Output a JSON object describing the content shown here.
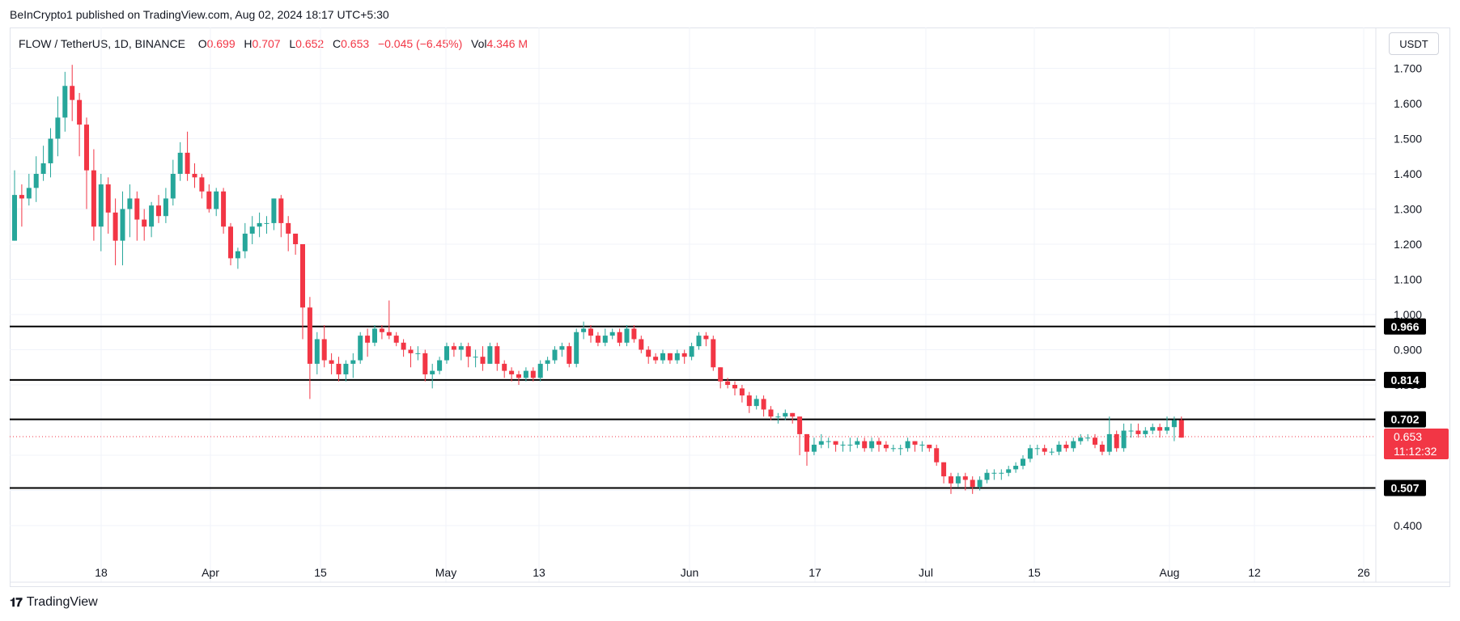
{
  "header": {
    "published": "BeInCrypto1 published on TradingView.com, Aug 02, 2024 18:17 UTC+5:30"
  },
  "legend": {
    "symbol": "FLOW / TetherUS, 1D, BINANCE",
    "o_label": "O",
    "o_value": "0.699",
    "h_label": "H",
    "h_value": "0.707",
    "l_label": "L",
    "l_value": "0.652",
    "c_label": "C",
    "c_value": "0.653",
    "change": "−0.045 (−6.45%)",
    "vol_label": "Vol",
    "vol_value": "4.346 M"
  },
  "currency_button": "USDT",
  "footer": {
    "brand": "TradingView"
  },
  "colors": {
    "up": "#26a69a",
    "down": "#f23645",
    "grid": "#f0f3fa",
    "level": "#000000"
  },
  "chart_data": {
    "type": "candlestick",
    "y_ticks": [
      "0.400",
      "0.500",
      "0.600",
      "0.700",
      "0.800",
      "0.900",
      "1.000",
      "1.100",
      "1.200",
      "1.300",
      "1.400",
      "1.500",
      "1.600",
      "1.700"
    ],
    "x_ticks": [
      "18",
      "Apr",
      "15",
      "May",
      "13",
      "Jun",
      "17",
      "Jul",
      "15",
      "Aug",
      "12",
      "26"
    ],
    "ylim": [
      0.35,
      1.76
    ],
    "levels": [
      {
        "value": 0.966,
        "label": "0.966"
      },
      {
        "value": 0.814,
        "label": "0.814"
      },
      {
        "value": 0.702,
        "label": "0.702"
      },
      {
        "value": 0.507,
        "label": "0.507"
      }
    ],
    "last_price": {
      "value": 0.653,
      "label": "0.653",
      "countdown": "11:12:32"
    },
    "candles": [
      [
        1.21,
        1.34,
        1.41,
        1.21
      ],
      [
        1.34,
        1.33,
        1.37,
        1.25
      ],
      [
        1.33,
        1.36,
        1.4,
        1.31
      ],
      [
        1.36,
        1.4,
        1.45,
        1.32
      ],
      [
        1.4,
        1.43,
        1.48,
        1.38
      ],
      [
        1.43,
        1.5,
        1.53,
        1.39
      ],
      [
        1.5,
        1.56,
        1.62,
        1.45
      ],
      [
        1.56,
        1.65,
        1.69,
        1.52
      ],
      [
        1.65,
        1.61,
        1.71,
        1.55
      ],
      [
        1.61,
        1.54,
        1.63,
        1.45
      ],
      [
        1.54,
        1.41,
        1.56,
        1.3
      ],
      [
        1.41,
        1.25,
        1.47,
        1.21
      ],
      [
        1.25,
        1.37,
        1.4,
        1.18
      ],
      [
        1.37,
        1.29,
        1.39,
        1.23
      ],
      [
        1.29,
        1.21,
        1.33,
        1.14
      ],
      [
        1.21,
        1.3,
        1.35,
        1.14
      ],
      [
        1.3,
        1.33,
        1.37,
        1.22
      ],
      [
        1.33,
        1.27,
        1.35,
        1.21
      ],
      [
        1.27,
        1.25,
        1.3,
        1.21
      ],
      [
        1.25,
        1.31,
        1.32,
        1.22
      ],
      [
        1.31,
        1.28,
        1.34,
        1.26
      ],
      [
        1.28,
        1.33,
        1.36,
        1.26
      ],
      [
        1.33,
        1.4,
        1.44,
        1.31
      ],
      [
        1.4,
        1.46,
        1.49,
        1.38
      ],
      [
        1.46,
        1.4,
        1.52,
        1.38
      ],
      [
        1.4,
        1.39,
        1.43,
        1.36
      ],
      [
        1.39,
        1.35,
        1.4,
        1.33
      ],
      [
        1.35,
        1.3,
        1.37,
        1.29
      ],
      [
        1.3,
        1.35,
        1.36,
        1.28
      ],
      [
        1.35,
        1.25,
        1.36,
        1.23
      ],
      [
        1.25,
        1.16,
        1.26,
        1.14
      ],
      [
        1.16,
        1.18,
        1.19,
        1.13
      ],
      [
        1.18,
        1.23,
        1.26,
        1.16
      ],
      [
        1.23,
        1.25,
        1.28,
        1.2
      ],
      [
        1.25,
        1.26,
        1.29,
        1.22
      ],
      [
        1.26,
        1.26,
        1.28,
        1.23
      ],
      [
        1.26,
        1.33,
        1.33,
        1.24
      ],
      [
        1.33,
        1.26,
        1.34,
        1.22
      ],
      [
        1.26,
        1.23,
        1.28,
        1.18
      ],
      [
        1.23,
        1.2,
        1.23,
        1.17
      ],
      [
        1.2,
        1.02,
        1.2,
        0.93
      ],
      [
        1.02,
        0.86,
        1.05,
        0.76
      ],
      [
        0.86,
        0.93,
        0.95,
        0.83
      ],
      [
        0.93,
        0.87,
        0.97,
        0.85
      ],
      [
        0.87,
        0.86,
        0.89,
        0.83
      ],
      [
        0.86,
        0.83,
        0.88,
        0.81
      ],
      [
        0.83,
        0.86,
        0.87,
        0.81
      ],
      [
        0.86,
        0.87,
        0.89,
        0.82
      ],
      [
        0.87,
        0.94,
        0.95,
        0.86
      ],
      [
        0.94,
        0.92,
        0.96,
        0.88
      ],
      [
        0.92,
        0.96,
        0.97,
        0.91
      ],
      [
        0.96,
        0.95,
        0.97,
        0.93
      ],
      [
        0.95,
        0.94,
        1.04,
        0.93
      ],
      [
        0.94,
        0.92,
        0.95,
        0.91
      ],
      [
        0.92,
        0.9,
        0.93,
        0.88
      ],
      [
        0.9,
        0.89,
        0.91,
        0.85
      ],
      [
        0.89,
        0.89,
        0.91,
        0.87
      ],
      [
        0.89,
        0.83,
        0.9,
        0.81
      ],
      [
        0.83,
        0.84,
        0.86,
        0.79
      ],
      [
        0.84,
        0.87,
        0.88,
        0.83
      ],
      [
        0.87,
        0.91,
        0.92,
        0.86
      ],
      [
        0.91,
        0.9,
        0.92,
        0.88
      ],
      [
        0.9,
        0.91,
        0.92,
        0.87
      ],
      [
        0.91,
        0.88,
        0.92,
        0.85
      ],
      [
        0.88,
        0.88,
        0.9,
        0.85
      ],
      [
        0.88,
        0.86,
        0.91,
        0.84
      ],
      [
        0.86,
        0.91,
        0.92,
        0.86
      ],
      [
        0.91,
        0.86,
        0.92,
        0.84
      ],
      [
        0.86,
        0.84,
        0.87,
        0.82
      ],
      [
        0.84,
        0.83,
        0.85,
        0.81
      ],
      [
        0.83,
        0.82,
        0.84,
        0.8
      ],
      [
        0.82,
        0.84,
        0.85,
        0.81
      ],
      [
        0.84,
        0.82,
        0.85,
        0.81
      ],
      [
        0.82,
        0.86,
        0.87,
        0.81
      ],
      [
        0.86,
        0.87,
        0.88,
        0.84
      ],
      [
        0.87,
        0.9,
        0.91,
        0.86
      ],
      [
        0.9,
        0.91,
        0.92,
        0.88
      ],
      [
        0.91,
        0.86,
        0.92,
        0.85
      ],
      [
        0.86,
        0.95,
        0.96,
        0.85
      ],
      [
        0.95,
        0.96,
        0.98,
        0.93
      ],
      [
        0.96,
        0.94,
        0.97,
        0.92
      ],
      [
        0.94,
        0.92,
        0.95,
        0.91
      ],
      [
        0.92,
        0.94,
        0.96,
        0.91
      ],
      [
        0.94,
        0.95,
        0.96,
        0.93
      ],
      [
        0.95,
        0.92,
        0.96,
        0.91
      ],
      [
        0.92,
        0.96,
        0.97,
        0.91
      ],
      [
        0.96,
        0.93,
        0.97,
        0.92
      ],
      [
        0.93,
        0.9,
        0.94,
        0.89
      ],
      [
        0.9,
        0.88,
        0.91,
        0.86
      ],
      [
        0.88,
        0.87,
        0.89,
        0.86
      ],
      [
        0.87,
        0.89,
        0.9,
        0.86
      ],
      [
        0.89,
        0.87,
        0.89,
        0.86
      ],
      [
        0.87,
        0.89,
        0.9,
        0.86
      ],
      [
        0.89,
        0.88,
        0.9,
        0.86
      ],
      [
        0.88,
        0.91,
        0.92,
        0.87
      ],
      [
        0.91,
        0.94,
        0.95,
        0.9
      ],
      [
        0.94,
        0.93,
        0.95,
        0.91
      ],
      [
        0.93,
        0.85,
        0.94,
        0.84
      ],
      [
        0.85,
        0.81,
        0.85,
        0.79
      ],
      [
        0.81,
        0.8,
        0.82,
        0.79
      ],
      [
        0.8,
        0.79,
        0.81,
        0.77
      ],
      [
        0.79,
        0.77,
        0.8,
        0.75
      ],
      [
        0.77,
        0.74,
        0.78,
        0.72
      ],
      [
        0.74,
        0.76,
        0.77,
        0.73
      ],
      [
        0.76,
        0.73,
        0.77,
        0.71
      ],
      [
        0.73,
        0.71,
        0.74,
        0.7
      ],
      [
        0.71,
        0.71,
        0.72,
        0.69
      ],
      [
        0.71,
        0.72,
        0.73,
        0.7
      ],
      [
        0.72,
        0.71,
        0.72,
        0.69
      ],
      [
        0.71,
        0.66,
        0.71,
        0.6
      ],
      [
        0.66,
        0.61,
        0.66,
        0.57
      ],
      [
        0.61,
        0.63,
        0.65,
        0.6
      ],
      [
        0.63,
        0.64,
        0.66,
        0.62
      ],
      [
        0.64,
        0.64,
        0.65,
        0.62
      ],
      [
        0.64,
        0.63,
        0.64,
        0.61
      ],
      [
        0.63,
        0.63,
        0.64,
        0.61
      ],
      [
        0.63,
        0.63,
        0.65,
        0.61
      ],
      [
        0.63,
        0.64,
        0.65,
        0.62
      ],
      [
        0.64,
        0.62,
        0.65,
        0.61
      ],
      [
        0.62,
        0.64,
        0.65,
        0.61
      ],
      [
        0.64,
        0.63,
        0.65,
        0.61
      ],
      [
        0.63,
        0.62,
        0.64,
        0.61
      ],
      [
        0.62,
        0.62,
        0.63,
        0.61
      ],
      [
        0.62,
        0.62,
        0.63,
        0.6
      ],
      [
        0.62,
        0.64,
        0.65,
        0.61
      ],
      [
        0.64,
        0.63,
        0.64,
        0.61
      ],
      [
        0.63,
        0.63,
        0.64,
        0.61
      ],
      [
        0.63,
        0.62,
        0.63,
        0.61
      ],
      [
        0.62,
        0.58,
        0.63,
        0.57
      ],
      [
        0.58,
        0.54,
        0.58,
        0.52
      ],
      [
        0.54,
        0.52,
        0.55,
        0.49
      ],
      [
        0.52,
        0.54,
        0.55,
        0.51
      ],
      [
        0.54,
        0.53,
        0.55,
        0.5
      ],
      [
        0.53,
        0.51,
        0.54,
        0.49
      ],
      [
        0.51,
        0.53,
        0.54,
        0.5
      ],
      [
        0.53,
        0.55,
        0.56,
        0.52
      ],
      [
        0.55,
        0.55,
        0.56,
        0.53
      ],
      [
        0.55,
        0.55,
        0.56,
        0.53
      ],
      [
        0.55,
        0.56,
        0.57,
        0.54
      ],
      [
        0.56,
        0.57,
        0.58,
        0.55
      ],
      [
        0.57,
        0.59,
        0.6,
        0.56
      ],
      [
        0.59,
        0.62,
        0.63,
        0.58
      ],
      [
        0.62,
        0.62,
        0.63,
        0.6
      ],
      [
        0.62,
        0.61,
        0.63,
        0.6
      ],
      [
        0.61,
        0.61,
        0.62,
        0.6
      ],
      [
        0.61,
        0.63,
        0.64,
        0.6
      ],
      [
        0.63,
        0.62,
        0.64,
        0.61
      ],
      [
        0.62,
        0.64,
        0.65,
        0.61
      ],
      [
        0.64,
        0.65,
        0.66,
        0.63
      ],
      [
        0.65,
        0.65,
        0.66,
        0.64
      ],
      [
        0.65,
        0.63,
        0.66,
        0.62
      ],
      [
        0.63,
        0.61,
        0.64,
        0.6
      ],
      [
        0.61,
        0.66,
        0.71,
        0.6
      ],
      [
        0.66,
        0.62,
        0.67,
        0.61
      ],
      [
        0.62,
        0.67,
        0.69,
        0.61
      ],
      [
        0.67,
        0.67,
        0.69,
        0.65
      ],
      [
        0.67,
        0.66,
        0.69,
        0.65
      ],
      [
        0.66,
        0.67,
        0.68,
        0.65
      ],
      [
        0.67,
        0.68,
        0.69,
        0.66
      ],
      [
        0.68,
        0.67,
        0.69,
        0.65
      ],
      [
        0.67,
        0.68,
        0.71,
        0.66
      ],
      [
        0.68,
        0.7,
        0.71,
        0.64
      ],
      [
        0.7,
        0.65,
        0.71,
        0.65
      ]
    ]
  }
}
